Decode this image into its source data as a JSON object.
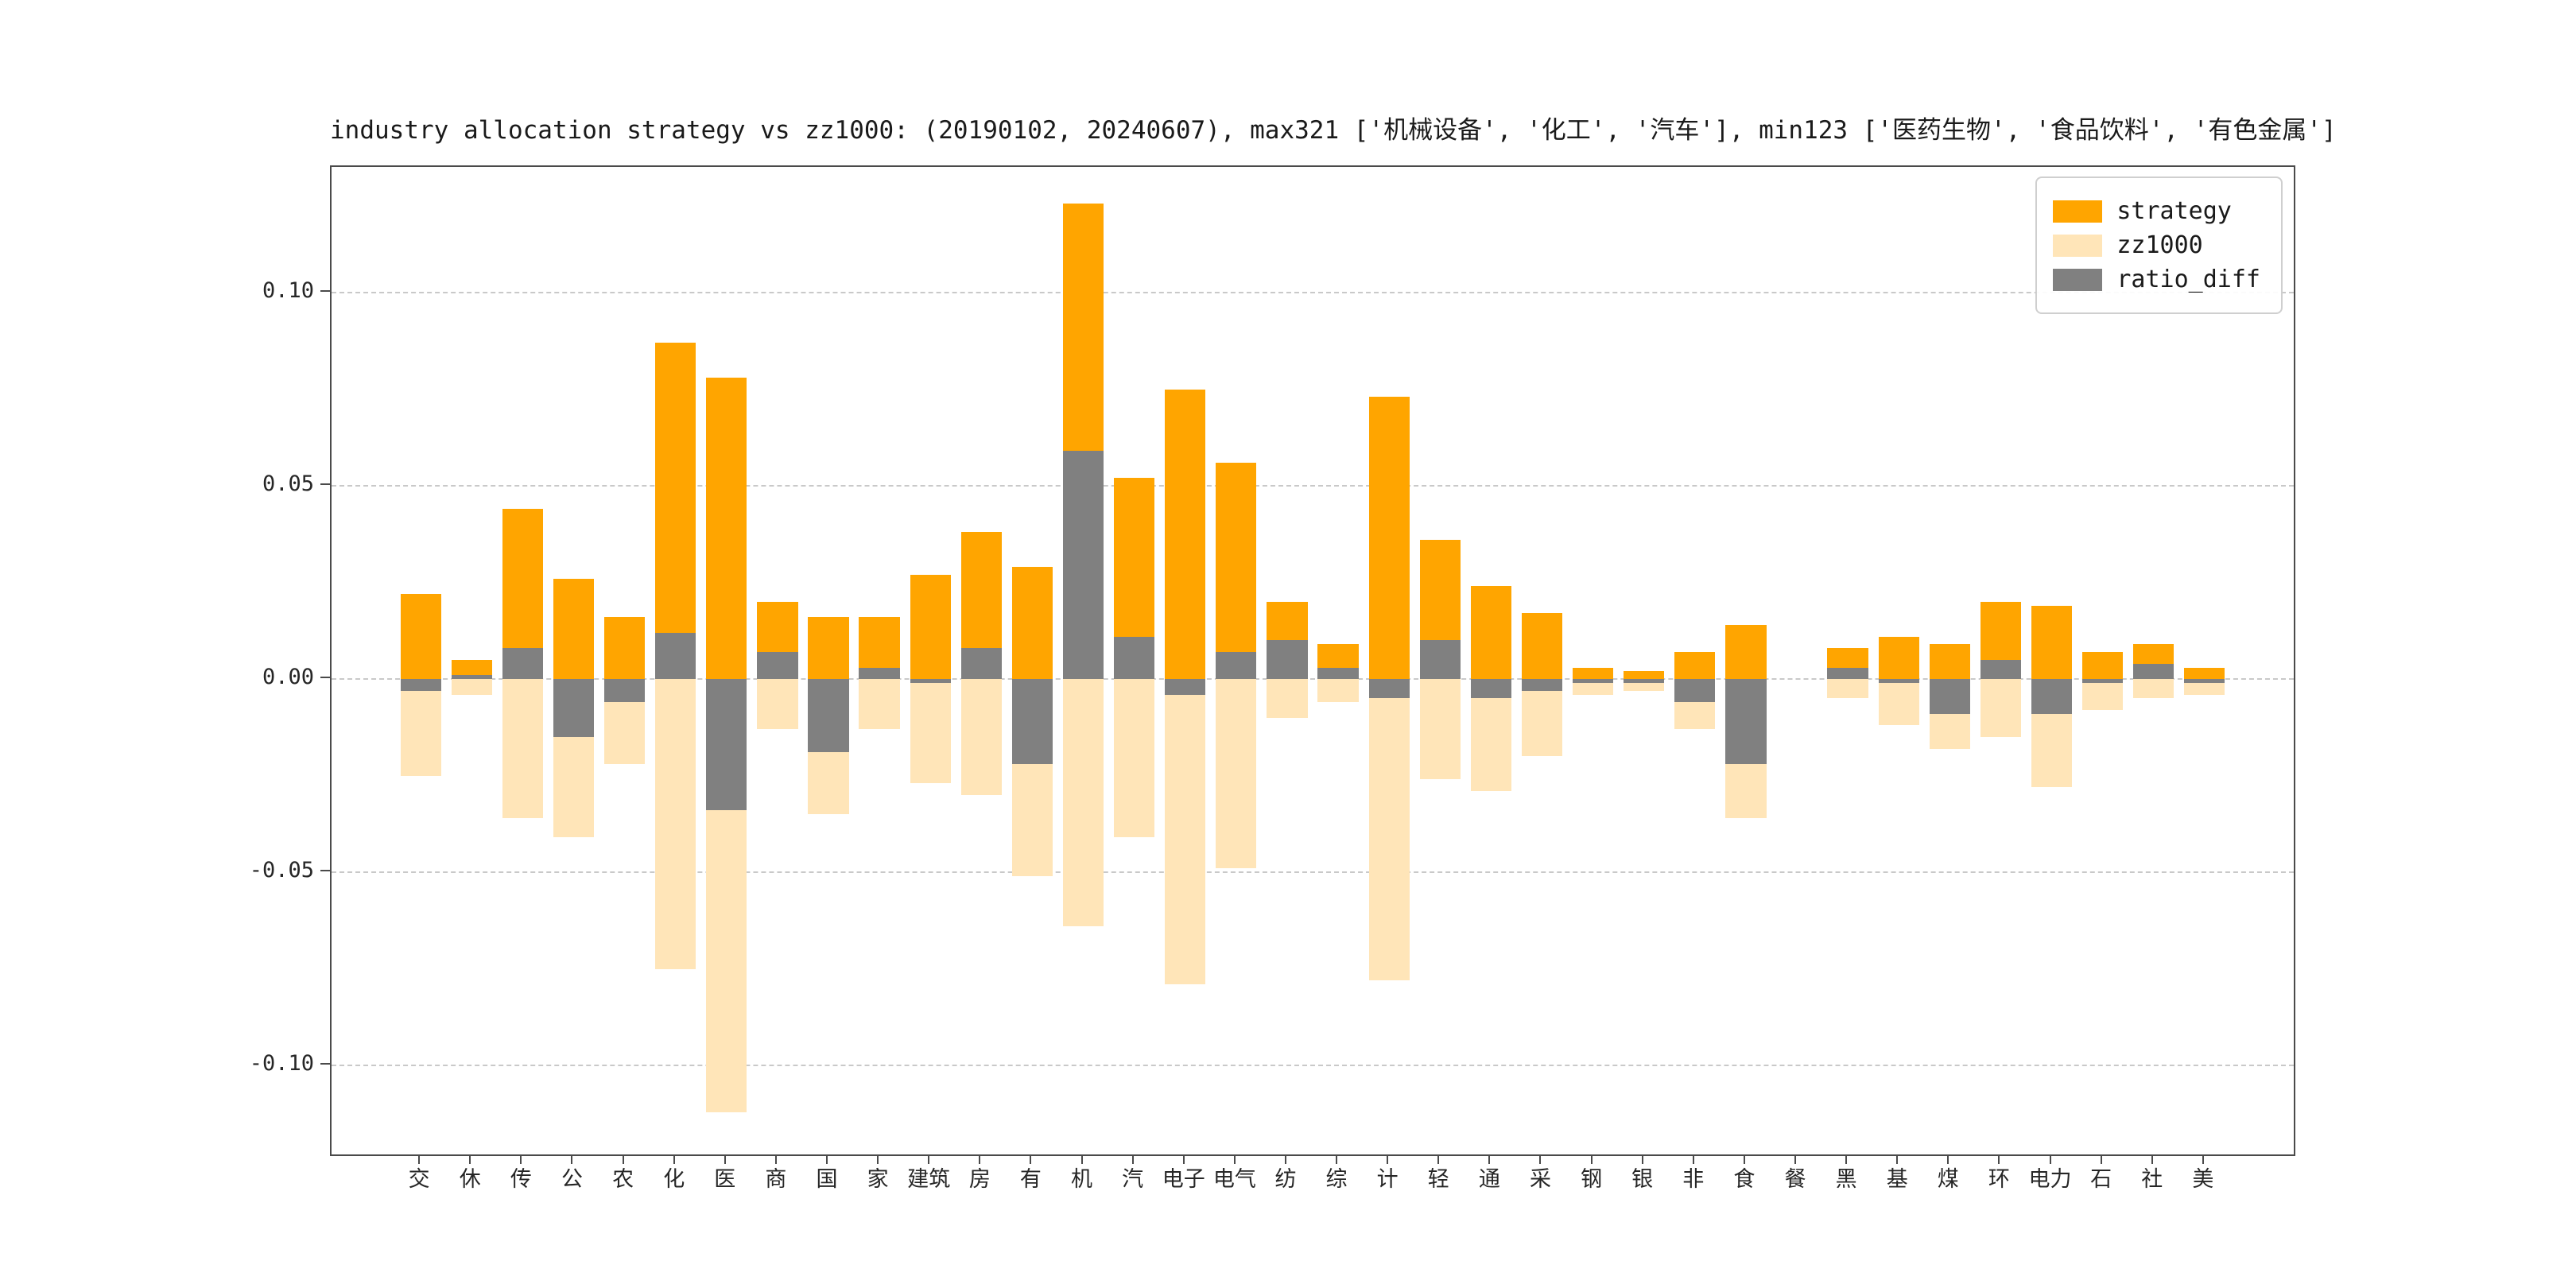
{
  "title": "industry allocation strategy vs zz1000: (20190102, 20240607), max321 ['机械设备', '化工', '汽车'], min123 ['医药生物', '食品饮料', '有色金属']",
  "colors": {
    "strategy": "#FFA500",
    "zz1000": "#FFE5B8",
    "ratio_diff": "#808080",
    "grid": "#C9C9C9",
    "spine": "#4A4A4A",
    "text": "#262626"
  },
  "legend": [
    {
      "label": "strategy",
      "color_key": "strategy"
    },
    {
      "label": "zz1000",
      "color_key": "zz1000"
    },
    {
      "label": "ratio_diff",
      "color_key": "ratio_diff"
    }
  ],
  "chart_data": {
    "type": "bar",
    "title": "industry allocation strategy vs zz1000: (20190102, 20240607), max321 ['机械设备', '化工', '汽车'], min123 ['医药生物', '食品饮料', '有色金属']",
    "xlabel": "",
    "ylabel": "",
    "grid": "dashed-horizontal",
    "legend_position": "upper right",
    "ylim": [
      -0.123,
      0.1325
    ],
    "yticks": [
      {
        "label": "0.10",
        "value": 0.1
      },
      {
        "label": "0.05",
        "value": 0.05
      },
      {
        "label": "0.00",
        "value": 0.0
      },
      {
        "label": "-0.05",
        "value": -0.05
      },
      {
        "label": "-0.10",
        "value": -0.1
      }
    ],
    "categories": [
      "交",
      "休",
      "传",
      "公",
      "农",
      "化",
      "医",
      "商",
      "国",
      "家",
      "建筑",
      "房",
      "有",
      "机",
      "汽",
      "电子",
      "电气",
      "纺",
      "综",
      "计",
      "轻",
      "通",
      "采",
      "钢",
      "银",
      "非",
      "食",
      "餐",
      "黑",
      "基",
      "煤",
      "环",
      "电力",
      "石",
      "社",
      "美"
    ],
    "series": [
      {
        "name": "strategy",
        "values": [
          0.022,
          0.005,
          0.044,
          0.026,
          0.016,
          0.087,
          0.078,
          0.02,
          0.016,
          0.016,
          0.027,
          0.038,
          0.029,
          0.123,
          0.052,
          0.075,
          0.056,
          0.02,
          0.009,
          0.073,
          0.036,
          0.024,
          0.017,
          0.003,
          0.002,
          0.007,
          0.014,
          0.0,
          0.008,
          0.011,
          0.009,
          0.02,
          0.019,
          0.007,
          0.009,
          0.003
        ]
      },
      {
        "name": "zz1000",
        "values": [
          -0.025,
          -0.004,
          -0.036,
          -0.041,
          -0.022,
          -0.075,
          -0.112,
          -0.013,
          -0.035,
          -0.013,
          -0.027,
          -0.03,
          -0.051,
          -0.064,
          -0.041,
          -0.079,
          -0.049,
          -0.01,
          -0.006,
          -0.078,
          -0.026,
          -0.029,
          -0.02,
          -0.004,
          -0.003,
          -0.013,
          -0.036,
          0.0,
          -0.005,
          -0.012,
          -0.018,
          -0.015,
          -0.028,
          -0.008,
          -0.005,
          -0.004
        ]
      },
      {
        "name": "ratio_diff",
        "values": [
          -0.003,
          0.001,
          0.008,
          -0.015,
          -0.006,
          0.012,
          -0.034,
          0.007,
          -0.019,
          0.003,
          -0.001,
          0.008,
          -0.022,
          0.059,
          0.011,
          -0.004,
          0.007,
          0.01,
          0.003,
          -0.005,
          0.01,
          -0.005,
          -0.003,
          -0.001,
          -0.001,
          -0.006,
          -0.022,
          0.0,
          0.003,
          -0.001,
          -0.009,
          0.005,
          -0.009,
          -0.001,
          0.004,
          -0.001
        ]
      }
    ]
  }
}
